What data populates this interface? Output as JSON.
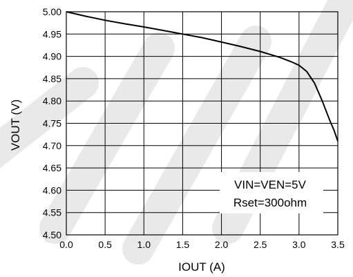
{
  "chart_data": {
    "type": "line",
    "xlabel": "IOUT (A)",
    "ylabel": "VOUT (V)",
    "xlim": [
      0.0,
      3.5
    ],
    "ylim": [
      4.5,
      5.0
    ],
    "x_ticks": [
      "0.0",
      "0.5",
      "1.0",
      "1.5",
      "2.0",
      "2.5",
      "3.0",
      "3.5"
    ],
    "y_ticks": [
      "4.50",
      "4.55",
      "4.60",
      "4.65",
      "4.70",
      "4.75",
      "4.80",
      "4.85",
      "4.90",
      "4.95",
      "5.00"
    ],
    "grid": true,
    "annotation": [
      "VIN=VEN=5V",
      "Rset=300ohm"
    ],
    "series": [
      {
        "x": [
          0.0,
          0.25,
          0.5,
          0.75,
          1.0,
          1.25,
          1.5,
          1.75,
          2.0,
          2.25,
          2.5,
          2.75,
          2.9,
          3.0,
          3.1,
          3.2,
          3.3,
          3.4,
          3.45,
          3.5
        ],
        "y": [
          5.0,
          4.99,
          4.981,
          4.973,
          4.966,
          4.958,
          4.95,
          4.942,
          4.932,
          4.922,
          4.911,
          4.898,
          4.888,
          4.88,
          4.866,
          4.84,
          4.8,
          4.755,
          4.735,
          4.71
        ]
      }
    ]
  }
}
